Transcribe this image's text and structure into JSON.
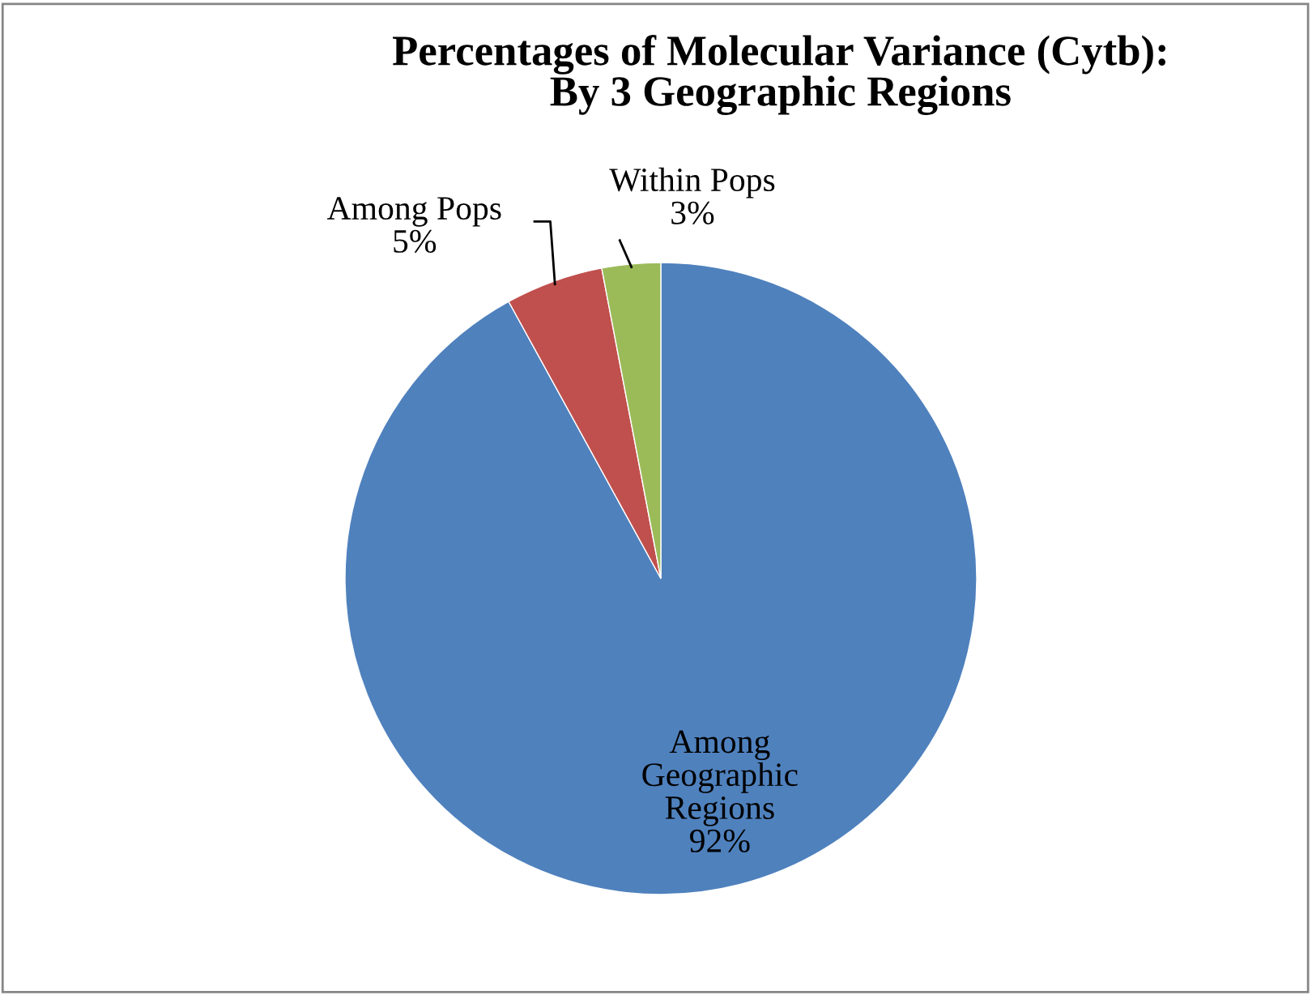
{
  "chart_data": {
    "type": "pie",
    "title": "Percentages of Molecular Variance (Cytb):\nBy 3 Geographic Regions",
    "categories": [
      "Among Geographic Regions",
      "Among Pops",
      "Within Pops"
    ],
    "values": [
      92,
      5,
      3
    ],
    "colors": [
      "#4f81bd",
      "#c0504d",
      "#9bbb59"
    ],
    "value_labels": [
      "92%",
      "5%",
      "3%"
    ],
    "legend": false
  }
}
